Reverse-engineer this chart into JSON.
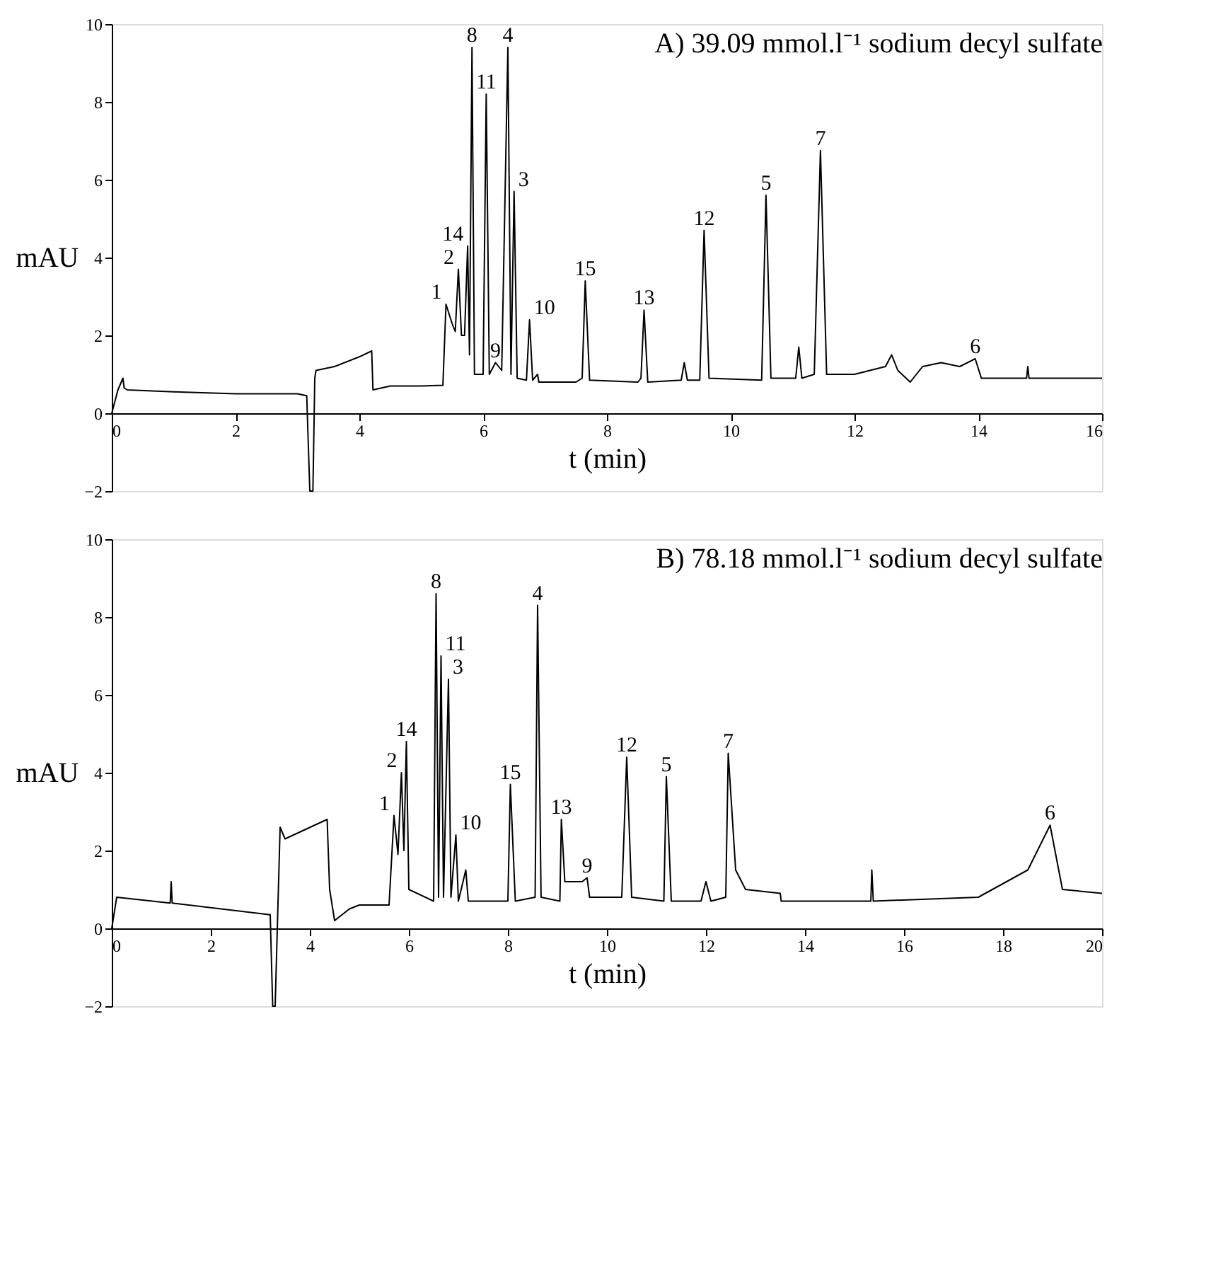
{
  "chart_data": [
    {
      "type": "line",
      "title": "A) 39.09 mmol.l⁻¹ sodium decyl sulfate",
      "xlabel": "t (min)",
      "ylabel": "mAU",
      "xlim": [
        0,
        16
      ],
      "ylim": [
        -2,
        10
      ],
      "xticks": [
        0,
        2,
        4,
        6,
        8,
        10,
        12,
        14,
        16
      ],
      "yticks": [
        -2,
        0,
        2,
        4,
        6,
        8,
        10
      ],
      "grid": false,
      "series": [
        {
          "color": "#000000",
          "x": [
            0,
            0.05,
            0.1,
            0.18,
            0.2,
            0.25,
            1,
            2,
            3,
            3.15,
            3.2,
            3.25,
            3.28,
            3.3,
            3.6,
            4,
            4.2,
            4.22,
            4.5,
            5,
            5.35,
            5.4,
            5.5,
            5.55,
            5.6,
            5.65,
            5.7,
            5.75,
            5.78,
            5.82,
            5.86,
            6.0,
            6.05,
            6.1,
            6.2,
            6.3,
            6.4,
            6.45,
            6.5,
            6.55,
            6.7,
            6.75,
            6.8,
            6.88,
            6.9,
            6.95,
            7.5,
            7.6,
            7.65,
            7.72,
            8.5,
            8.55,
            8.6,
            8.66,
            9.2,
            9.25,
            9.3,
            9.5,
            9.57,
            9.65,
            10.5,
            10.57,
            10.65,
            11.05,
            11.1,
            11.15,
            11.35,
            11.45,
            11.55,
            12,
            12.5,
            12.6,
            12.7,
            12.9,
            13.1,
            13.4,
            13.7,
            13.95,
            14.05,
            14.5,
            14.78,
            14.8,
            14.82,
            16
          ],
          "values": [
            0,
            0.3,
            0.6,
            0.9,
            0.65,
            0.6,
            0.55,
            0.5,
            0.5,
            0.45,
            -2,
            -2,
            0.9,
            1.1,
            1.2,
            1.45,
            1.6,
            0.6,
            0.7,
            0.7,
            0.72,
            2.8,
            2.3,
            2.1,
            3.7,
            2.0,
            2.0,
            4.3,
            1.5,
            9.4,
            1.0,
            1.0,
            8.2,
            1.0,
            1.3,
            1.1,
            9.4,
            1.0,
            5.7,
            0.9,
            0.85,
            2.4,
            0.85,
            1.0,
            0.8,
            0.8,
            0.8,
            0.9,
            3.4,
            0.85,
            0.8,
            0.9,
            2.65,
            0.8,
            0.85,
            1.3,
            0.85,
            0.85,
            4.7,
            0.9,
            0.85,
            5.6,
            0.9,
            0.9,
            1.7,
            0.9,
            1.0,
            6.75,
            1.0,
            1.0,
            1.2,
            1.5,
            1.1,
            0.8,
            1.2,
            1.3,
            1.2,
            1.4,
            0.9,
            0.9,
            0.9,
            1.2,
            0.9,
            0.9
          ]
        }
      ],
      "annotations": [
        {
          "text": "1",
          "x": 5.4,
          "y": 2.8
        },
        {
          "text": "2",
          "x": 5.6,
          "y": 3.7
        },
        {
          "text": "14",
          "x": 5.75,
          "y": 4.3
        },
        {
          "text": "8",
          "x": 5.82,
          "y": 9.4
        },
        {
          "text": "11",
          "x": 6.05,
          "y": 8.2
        },
        {
          "text": "9",
          "x": 6.2,
          "y": 1.3
        },
        {
          "text": "4",
          "x": 6.4,
          "y": 9.4
        },
        {
          "text": "3",
          "x": 6.5,
          "y": 5.7
        },
        {
          "text": "10",
          "x": 6.75,
          "y": 2.4
        },
        {
          "text": "15",
          "x": 7.65,
          "y": 3.4
        },
        {
          "text": "13",
          "x": 8.6,
          "y": 2.65
        },
        {
          "text": "12",
          "x": 9.57,
          "y": 4.7
        },
        {
          "text": "5",
          "x": 10.57,
          "y": 5.6
        },
        {
          "text": "7",
          "x": 11.45,
          "y": 6.75
        },
        {
          "text": "6",
          "x": 13.95,
          "y": 1.4
        }
      ]
    },
    {
      "type": "line",
      "title": "B) 78.18 mmol.l⁻¹ sodium decyl sulfate",
      "xlabel": "t (min)",
      "ylabel": "mAU",
      "xlim": [
        0,
        20
      ],
      "ylim": [
        -2,
        10
      ],
      "xticks": [
        0,
        2,
        4,
        6,
        8,
        10,
        12,
        14,
        16,
        18,
        20
      ],
      "yticks": [
        -2,
        0,
        2,
        4,
        6,
        8,
        10
      ],
      "grid": false,
      "series": [
        {
          "color": "#000000",
          "x": [
            0,
            0.1,
            1.18,
            1.2,
            1.22,
            3.2,
            3.25,
            3.3,
            3.4,
            3.5,
            4.35,
            4.4,
            4.5,
            4.8,
            5,
            5.6,
            5.7,
            5.78,
            5.85,
            5.9,
            5.95,
            6.0,
            6.5,
            6.55,
            6.6,
            6.65,
            6.7,
            6.8,
            6.85,
            6.95,
            7.0,
            7.15,
            7.2,
            8.0,
            8.05,
            8.15,
            8.55,
            8.6,
            8.67,
            9.05,
            9.08,
            9.15,
            9.5,
            9.6,
            9.65,
            10.3,
            10.4,
            10.5,
            11.15,
            11.2,
            11.3,
            11.9,
            12.0,
            12.1,
            12.4,
            12.45,
            12.6,
            12.8,
            13.5,
            13.52,
            15.33,
            15.35,
            15.38,
            17.5,
            18.5,
            18.95,
            19.2,
            20
          ],
          "values": [
            0,
            0.8,
            0.65,
            1.2,
            0.65,
            0.35,
            -2,
            -2,
            2.6,
            2.3,
            2.8,
            1.0,
            0.2,
            0.5,
            0.6,
            0.6,
            2.9,
            1.9,
            4.0,
            2.0,
            4.8,
            1.0,
            0.7,
            8.6,
            0.8,
            7.0,
            0.8,
            6.4,
            0.8,
            2.4,
            0.7,
            1.5,
            0.7,
            0.7,
            3.7,
            0.7,
            0.8,
            8.3,
            0.8,
            0.7,
            2.8,
            1.2,
            1.2,
            1.3,
            0.8,
            0.8,
            4.4,
            0.8,
            0.7,
            3.9,
            0.7,
            0.7,
            1.2,
            0.7,
            0.8,
            4.5,
            1.5,
            1.0,
            0.9,
            0.7,
            0.7,
            1.5,
            0.7,
            0.8,
            1.5,
            2.65,
            1.0,
            0.9
          ]
        }
      ],
      "annotations": [
        {
          "text": "1",
          "x": 5.7,
          "y": 2.9
        },
        {
          "text": "2",
          "x": 5.85,
          "y": 4.0
        },
        {
          "text": "14",
          "x": 5.95,
          "y": 4.8
        },
        {
          "text": "8",
          "x": 6.55,
          "y": 8.6
        },
        {
          "text": "11",
          "x": 6.65,
          "y": 7.0
        },
        {
          "text": "3",
          "x": 6.8,
          "y": 6.4
        },
        {
          "text": "10",
          "x": 6.95,
          "y": 2.4
        },
        {
          "text": "15",
          "x": 8.05,
          "y": 3.7
        },
        {
          "text": "4",
          "x": 8.6,
          "y": 8.3
        },
        {
          "text": "13",
          "x": 9.08,
          "y": 2.8
        },
        {
          "text": "9",
          "x": 9.6,
          "y": 1.3
        },
        {
          "text": "12",
          "x": 10.4,
          "y": 4.4
        },
        {
          "text": "5",
          "x": 11.2,
          "y": 3.9
        },
        {
          "text": "7",
          "x": 12.45,
          "y": 4.5
        },
        {
          "text": "6",
          "x": 18.95,
          "y": 2.65
        }
      ]
    }
  ]
}
